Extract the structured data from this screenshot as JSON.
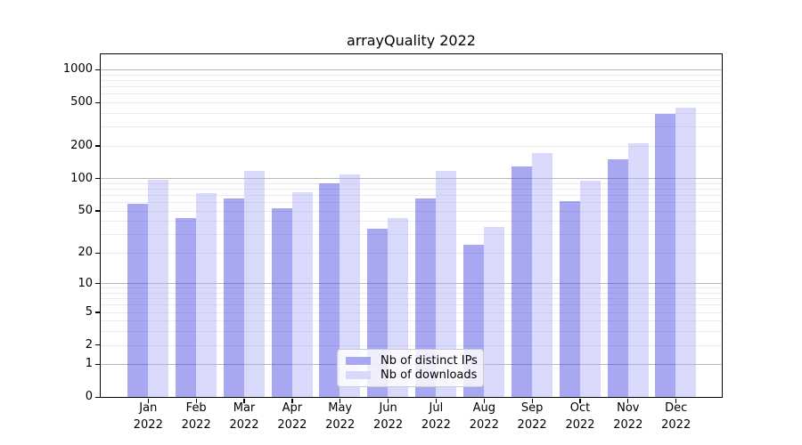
{
  "chart_data": {
    "type": "bar",
    "title": "arrayQuality 2022",
    "xlabel": "",
    "ylabel": "",
    "year": "2022",
    "months": [
      "Jan",
      "Feb",
      "Mar",
      "Apr",
      "May",
      "Jun",
      "Jul",
      "Aug",
      "Sep",
      "Oct",
      "Nov",
      "Dec"
    ],
    "categories": [
      "Jan 2022",
      "Feb 2022",
      "Mar 2022",
      "Apr 2022",
      "May 2022",
      "Jun 2022",
      "Jul 2022",
      "Aug 2022",
      "Sep 2022",
      "Oct 2022",
      "Nov 2022",
      "Dec 2022"
    ],
    "series": [
      {
        "key": "distinct-ips",
        "name": "Nb of distinct IPs",
        "color": "#a8a8f2",
        "values": [
          58,
          43,
          65,
          53,
          90,
          34,
          65,
          24,
          128,
          61,
          150,
          390
        ]
      },
      {
        "key": "downloads",
        "name": "Nb of downloads",
        "color": "#d9d9fb",
        "values": [
          97,
          73,
          118,
          74,
          109,
          43,
          116,
          35,
          172,
          95,
          210,
          445
        ]
      }
    ],
    "y_scale": "log(1+x)",
    "ylim": [
      0,
      1380
    ],
    "y_ticks": [
      {
        "label": "0",
        "value": 0
      },
      {
        "label": "1",
        "value": 1
      },
      {
        "label": "2",
        "value": 2
      },
      {
        "label": "5",
        "value": 5
      },
      {
        "label": "10",
        "value": 10
      },
      {
        "label": "20",
        "value": 20
      },
      {
        "label": "50",
        "value": 50
      },
      {
        "label": "100",
        "value": 100
      },
      {
        "label": "200",
        "value": 200
      },
      {
        "label": "500",
        "value": 500
      },
      {
        "label": "1000",
        "value": 1000
      }
    ],
    "major_gridlines": [
      1,
      10,
      100,
      1000
    ],
    "minor_gridlines": [
      2,
      3,
      4,
      5,
      6,
      7,
      8,
      9,
      20,
      30,
      40,
      50,
      60,
      70,
      80,
      90,
      200,
      300,
      400,
      500,
      600,
      700,
      800,
      900
    ],
    "grid": "horizontal log grid, major darker than minor",
    "legend": {
      "position": "inside plot, lower center-right",
      "labels": [
        "Nb of distinct IPs",
        "Nb of downloads"
      ]
    },
    "colors": {
      "grid_major": "#b8b8b8",
      "grid_minor": "#ebebeb",
      "spine": "#000000",
      "background": "#ffffff"
    }
  }
}
